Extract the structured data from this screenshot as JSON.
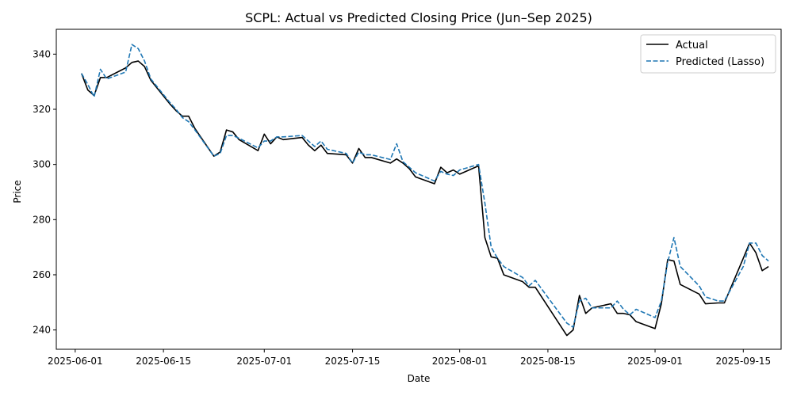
{
  "chart_data": {
    "type": "line",
    "title": "SCPL: Actual vs Predicted Closing Price (Jun–Sep 2025)",
    "xlabel": "Date",
    "ylabel": "Price",
    "xlim": [
      "2025-05-29",
      "2025-09-21"
    ],
    "ylim": [
      233,
      349
    ],
    "x_ticks": [
      "2025-06-01",
      "2025-06-15",
      "2025-07-01",
      "2025-07-15",
      "2025-08-01",
      "2025-08-15",
      "2025-09-01",
      "2025-09-15"
    ],
    "y_ticks": [
      240,
      260,
      280,
      300,
      320,
      340
    ],
    "grid": false,
    "legend": "top-right",
    "series": [
      {
        "name": "Actual",
        "color": "#000000",
        "style": "solid",
        "points": [
          [
            "2025-06-02",
            333.0
          ],
          [
            "2025-06-03",
            327.0
          ],
          [
            "2025-06-04",
            325.0
          ],
          [
            "2025-06-05",
            331.5
          ],
          [
            "2025-06-06",
            331.5
          ],
          [
            "2025-06-09",
            335.0
          ],
          [
            "2025-06-10",
            337.0
          ],
          [
            "2025-06-11",
            337.5
          ],
          [
            "2025-06-12",
            335.5
          ],
          [
            "2025-06-13",
            330.5
          ],
          [
            "2025-06-16",
            322.0
          ],
          [
            "2025-06-17",
            319.5
          ],
          [
            "2025-06-18",
            317.5
          ],
          [
            "2025-06-19",
            317.5
          ],
          [
            "2025-06-20",
            313.0
          ],
          [
            "2025-06-23",
            303.0
          ],
          [
            "2025-06-24",
            304.5
          ],
          [
            "2025-06-25",
            312.5
          ],
          [
            "2025-06-26",
            311.8
          ],
          [
            "2025-06-27",
            309.0
          ],
          [
            "2025-06-30",
            305.0
          ],
          [
            "2025-07-01",
            311.0
          ],
          [
            "2025-07-02",
            307.5
          ],
          [
            "2025-07-03",
            310.0
          ],
          [
            "2025-07-04",
            309.0
          ],
          [
            "2025-07-07",
            309.8
          ],
          [
            "2025-07-08",
            307.0
          ],
          [
            "2025-07-09",
            305.0
          ],
          [
            "2025-07-10",
            307.0
          ],
          [
            "2025-07-11",
            304.0
          ],
          [
            "2025-07-14",
            303.5
          ],
          [
            "2025-07-15",
            300.5
          ],
          [
            "2025-07-16",
            305.8
          ],
          [
            "2025-07-17",
            302.5
          ],
          [
            "2025-07-18",
            302.5
          ],
          [
            "2025-07-21",
            300.5
          ],
          [
            "2025-07-22",
            302.0
          ],
          [
            "2025-07-23",
            300.5
          ],
          [
            "2025-07-24",
            298.5
          ],
          [
            "2025-07-25",
            295.5
          ],
          [
            "2025-07-28",
            293.0
          ],
          [
            "2025-07-29",
            299.0
          ],
          [
            "2025-07-30",
            297.0
          ],
          [
            "2025-07-31",
            298.0
          ],
          [
            "2025-08-01",
            296.5
          ],
          [
            "2025-08-04",
            299.5
          ],
          [
            "2025-08-05",
            273.5
          ],
          [
            "2025-08-06",
            266.5
          ],
          [
            "2025-08-07",
            266.0
          ],
          [
            "2025-08-08",
            260.0
          ],
          [
            "2025-08-11",
            257.5
          ],
          [
            "2025-08-12",
            255.5
          ],
          [
            "2025-08-13",
            255.5
          ],
          [
            "2025-08-18",
            238.0
          ],
          [
            "2025-08-19",
            240.0
          ],
          [
            "2025-08-20",
            252.5
          ],
          [
            "2025-08-21",
            246.0
          ],
          [
            "2025-08-22",
            248.0
          ],
          [
            "2025-08-25",
            249.5
          ],
          [
            "2025-08-26",
            246.0
          ],
          [
            "2025-08-27",
            246.0
          ],
          [
            "2025-08-28",
            245.5
          ],
          [
            "2025-08-29",
            243.0
          ],
          [
            "2025-09-01",
            240.5
          ],
          [
            "2025-09-02",
            249.5
          ],
          [
            "2025-09-03",
            265.5
          ],
          [
            "2025-09-04",
            265.0
          ],
          [
            "2025-09-05",
            256.5
          ],
          [
            "2025-09-08",
            253.0
          ],
          [
            "2025-09-09",
            249.5
          ],
          [
            "2025-09-11",
            249.8
          ],
          [
            "2025-09-12",
            249.8
          ],
          [
            "2025-09-15",
            266.0
          ],
          [
            "2025-09-16",
            271.5
          ],
          [
            "2025-09-17",
            268.0
          ],
          [
            "2025-09-18",
            261.5
          ],
          [
            "2025-09-19",
            263.0
          ]
        ]
      },
      {
        "name": "Predicted (Lasso)",
        "color": "#1f77b4",
        "style": "dashed",
        "points": [
          [
            "2025-06-02",
            333.0
          ],
          [
            "2025-06-03",
            329.0
          ],
          [
            "2025-06-04",
            324.5
          ],
          [
            "2025-06-05",
            334.5
          ],
          [
            "2025-06-06",
            331.0
          ],
          [
            "2025-06-09",
            333.5
          ],
          [
            "2025-06-10",
            343.5
          ],
          [
            "2025-06-11",
            342.0
          ],
          [
            "2025-06-12",
            337.5
          ],
          [
            "2025-06-13",
            331.0
          ],
          [
            "2025-06-16",
            322.5
          ],
          [
            "2025-06-17",
            320.0
          ],
          [
            "2025-06-18",
            317.0
          ],
          [
            "2025-06-19",
            315.5
          ],
          [
            "2025-06-20",
            312.5
          ],
          [
            "2025-06-23",
            303.0
          ],
          [
            "2025-06-24",
            304.0
          ],
          [
            "2025-06-25",
            310.5
          ],
          [
            "2025-06-26",
            310.5
          ],
          [
            "2025-06-27",
            309.5
          ],
          [
            "2025-06-30",
            306.0
          ],
          [
            "2025-07-01",
            308.5
          ],
          [
            "2025-07-02",
            308.5
          ],
          [
            "2025-07-03",
            310.0
          ],
          [
            "2025-07-04",
            310.0
          ],
          [
            "2025-07-07",
            310.5
          ],
          [
            "2025-07-08",
            308.5
          ],
          [
            "2025-07-09",
            306.5
          ],
          [
            "2025-07-10",
            308.5
          ],
          [
            "2025-07-11",
            305.5
          ],
          [
            "2025-07-14",
            304.0
          ],
          [
            "2025-07-15",
            300.5
          ],
          [
            "2025-07-16",
            304.5
          ],
          [
            "2025-07-17",
            303.5
          ],
          [
            "2025-07-18",
            303.5
          ],
          [
            "2025-07-21",
            301.8
          ],
          [
            "2025-07-22",
            307.5
          ],
          [
            "2025-07-23",
            301.0
          ],
          [
            "2025-07-24",
            299.0
          ],
          [
            "2025-07-25",
            297.0
          ],
          [
            "2025-07-28",
            294.0
          ],
          [
            "2025-07-29",
            297.5
          ],
          [
            "2025-07-30",
            296.5
          ],
          [
            "2025-07-31",
            296.0
          ],
          [
            "2025-08-01",
            298.0
          ],
          [
            "2025-08-04",
            300.0
          ],
          [
            "2025-08-05",
            286.0
          ],
          [
            "2025-08-06",
            270.0
          ],
          [
            "2025-08-07",
            266.0
          ],
          [
            "2025-08-08",
            263.0
          ],
          [
            "2025-08-11",
            259.0
          ],
          [
            "2025-08-12",
            256.0
          ],
          [
            "2025-08-13",
            258.0
          ],
          [
            "2025-08-18",
            242.5
          ],
          [
            "2025-08-19",
            241.0
          ],
          [
            "2025-08-20",
            250.5
          ],
          [
            "2025-08-21",
            251.5
          ],
          [
            "2025-08-22",
            248.0
          ],
          [
            "2025-08-25",
            248.0
          ],
          [
            "2025-08-26",
            250.5
          ],
          [
            "2025-08-27",
            247.5
          ],
          [
            "2025-08-28",
            245.5
          ],
          [
            "2025-08-29",
            247.5
          ],
          [
            "2025-09-01",
            244.5
          ],
          [
            "2025-09-02",
            250.5
          ],
          [
            "2025-09-03",
            264.5
          ],
          [
            "2025-09-04",
            273.5
          ],
          [
            "2025-09-05",
            263.0
          ],
          [
            "2025-09-08",
            256.0
          ],
          [
            "2025-09-09",
            252.0
          ],
          [
            "2025-09-11",
            250.5
          ],
          [
            "2025-09-12",
            250.5
          ],
          [
            "2025-09-15",
            263.0
          ],
          [
            "2025-09-16",
            271.5
          ],
          [
            "2025-09-17",
            271.5
          ],
          [
            "2025-09-18",
            267.0
          ],
          [
            "2025-09-19",
            265.0
          ]
        ]
      }
    ]
  }
}
